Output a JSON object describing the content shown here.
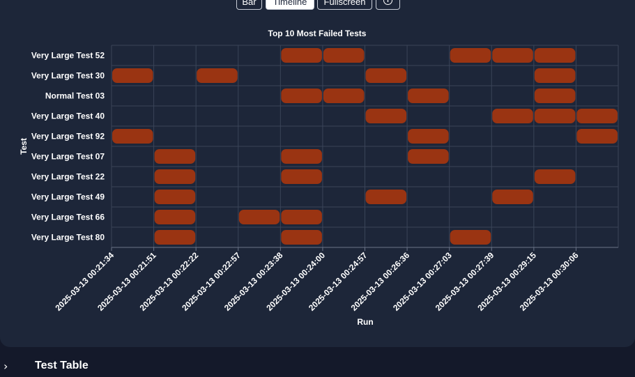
{
  "toolbar": {
    "buttons": [
      {
        "label": "Bar",
        "active": false
      },
      {
        "label": "Timeline",
        "active": true
      },
      {
        "label": "Fullscreen",
        "active": false
      }
    ],
    "info_icon": "info-circle-icon"
  },
  "chart_data": {
    "type": "heatmap",
    "title": "Top 10 Most Failed Tests",
    "xlabel": "Run",
    "ylabel": "Test",
    "x_categories": [
      "2025-03-13 00:21:34",
      "2025-03-13 00:21:51",
      "2025-03-13 00:22:22",
      "2025-03-13 00:22:57",
      "2025-03-13 00:23:38",
      "2025-03-13 00:24:00",
      "2025-03-13 00:24:57",
      "2025-03-13 00:26:36",
      "2025-03-13 00:27:03",
      "2025-03-13 00:27:39",
      "2025-03-13 00:29:15",
      "2025-03-13 00:30:06"
    ],
    "y_categories": [
      "Very Large Test 52",
      "Very Large Test 30",
      "Normal Test 03",
      "Very Large Test 40",
      "Very Large Test 92",
      "Very Large Test 07",
      "Very Large Test 22",
      "Very Large Test 49",
      "Very Large Test 66",
      "Very Large Test 80"
    ],
    "failures": [
      {
        "test": "Very Large Test 52",
        "runs": [
          4,
          5,
          8,
          9,
          10
        ]
      },
      {
        "test": "Very Large Test 30",
        "runs": [
          0,
          2,
          6,
          10
        ]
      },
      {
        "test": "Normal Test 03",
        "runs": [
          4,
          5,
          7,
          10
        ]
      },
      {
        "test": "Very Large Test 40",
        "runs": [
          6,
          9,
          10,
          11
        ]
      },
      {
        "test": "Very Large Test 92",
        "runs": [
          0,
          7,
          11
        ]
      },
      {
        "test": "Very Large Test 07",
        "runs": [
          1,
          4,
          7
        ]
      },
      {
        "test": "Very Large Test 22",
        "runs": [
          1,
          4,
          10
        ]
      },
      {
        "test": "Very Large Test 49",
        "runs": [
          1,
          6,
          9
        ]
      },
      {
        "test": "Very Large Test 66",
        "runs": [
          1,
          3,
          4
        ]
      },
      {
        "test": "Very Large Test 80",
        "runs": [
          1,
          4,
          8
        ]
      }
    ],
    "fail_color": "#9a3412",
    "grid": true
  },
  "section": {
    "title": "Test Table",
    "expand_icon": "chevron-right-icon"
  }
}
